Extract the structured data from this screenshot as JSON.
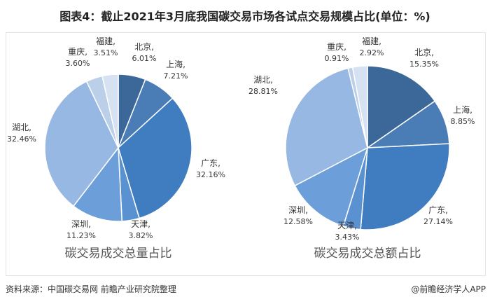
{
  "title": "图表4：截止2021年3月底我国碳交易市场各试点交易规模占比(单位：%)",
  "source": "资料来源：中国碳交易网 前瞻产业研究院整理",
  "credit": "@前瞻经济学人APP",
  "chart_data": [
    {
      "type": "pie",
      "title": "碳交易成交总量占比",
      "categories": [
        "北京",
        "上海",
        "广东",
        "天津",
        "深圳",
        "湖北",
        "重庆",
        "福建"
      ],
      "values": [
        6.01,
        7.21,
        32.16,
        3.82,
        11.23,
        32.46,
        3.6,
        3.51
      ],
      "labels": [
        "6.01%",
        "7.21%",
        "32.16%",
        "3.82%",
        "11.23%",
        "32.46%",
        "3.60%",
        "3.51%"
      ]
    },
    {
      "type": "pie",
      "title": "碳交易成交总额占比",
      "categories": [
        "北京",
        "上海",
        "广东",
        "天津",
        "深圳",
        "湖北",
        "重庆",
        "福建"
      ],
      "values": [
        15.35,
        8.85,
        27.14,
        3.43,
        12.58,
        28.81,
        0.91,
        2.92
      ],
      "labels": [
        "15.35%",
        "8.85%",
        "27.14%",
        "3.43%",
        "12.58%",
        "28.81%",
        "0.91%",
        "2.92%"
      ]
    }
  ],
  "colors": [
    "#3b6898",
    "#4a7db5",
    "#3f7cc0",
    "#5a91d0",
    "#6c9fd9",
    "#97b8e2",
    "#bccfe9",
    "#d6e2f1"
  ]
}
